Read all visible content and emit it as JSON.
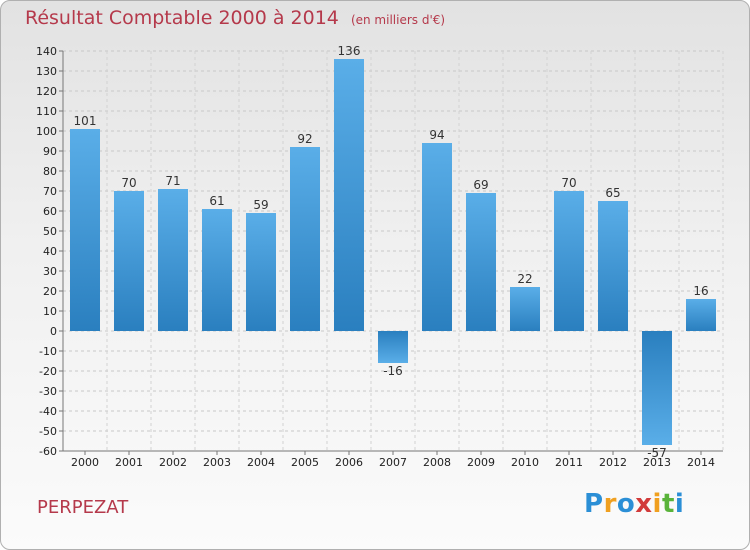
{
  "header": {
    "title": "Résultat Comptable 2000 à 2014",
    "unit": "(en milliers d'€)"
  },
  "commune": "PERPEZAT",
  "logo": {
    "letters": [
      "P",
      "r",
      "o",
      "x",
      "i",
      "t",
      "i"
    ],
    "colors": [
      "#2b8fd6",
      "#f0a020",
      "#2b8fd6",
      "#d23b3b",
      "#f0a020",
      "#59b33a",
      "#2b8fd6"
    ]
  },
  "colors": {
    "bar_top": "#5aaee8",
    "bar_bottom": "#2a7fbf",
    "title": "#b5394b"
  },
  "chart_data": {
    "type": "bar",
    "title": "Résultat Comptable 2000 à 2014",
    "categories": [
      "2000",
      "2001",
      "2002",
      "2003",
      "2004",
      "2005",
      "2006",
      "2007",
      "2008",
      "2009",
      "2010",
      "2011",
      "2012",
      "2013",
      "2014"
    ],
    "values": [
      101,
      70,
      71,
      61,
      59,
      92,
      136,
      -16,
      94,
      69,
      22,
      70,
      65,
      -57,
      16
    ],
    "data_labels": [
      "101",
      "70",
      "71",
      "61",
      "59",
      "92",
      "136",
      "-16",
      "94",
      "69",
      "22",
      "70",
      "65",
      "-57",
      "16"
    ],
    "ylim": [
      -60,
      140
    ],
    "yticks": [
      140,
      130,
      120,
      110,
      100,
      90,
      80,
      70,
      60,
      50,
      40,
      30,
      20,
      10,
      0,
      -10,
      -20,
      -30,
      -40,
      -50,
      -60
    ],
    "ytick_labels": [
      "140",
      "130",
      "120",
      "110",
      "100",
      "90",
      "80",
      "70",
      "60",
      "50",
      "40",
      "30",
      "20",
      "10",
      "0",
      "-10",
      "-20",
      "-30",
      "-40",
      "-50",
      "-60"
    ],
    "grid": "horizontal dashed",
    "legend": "none"
  }
}
